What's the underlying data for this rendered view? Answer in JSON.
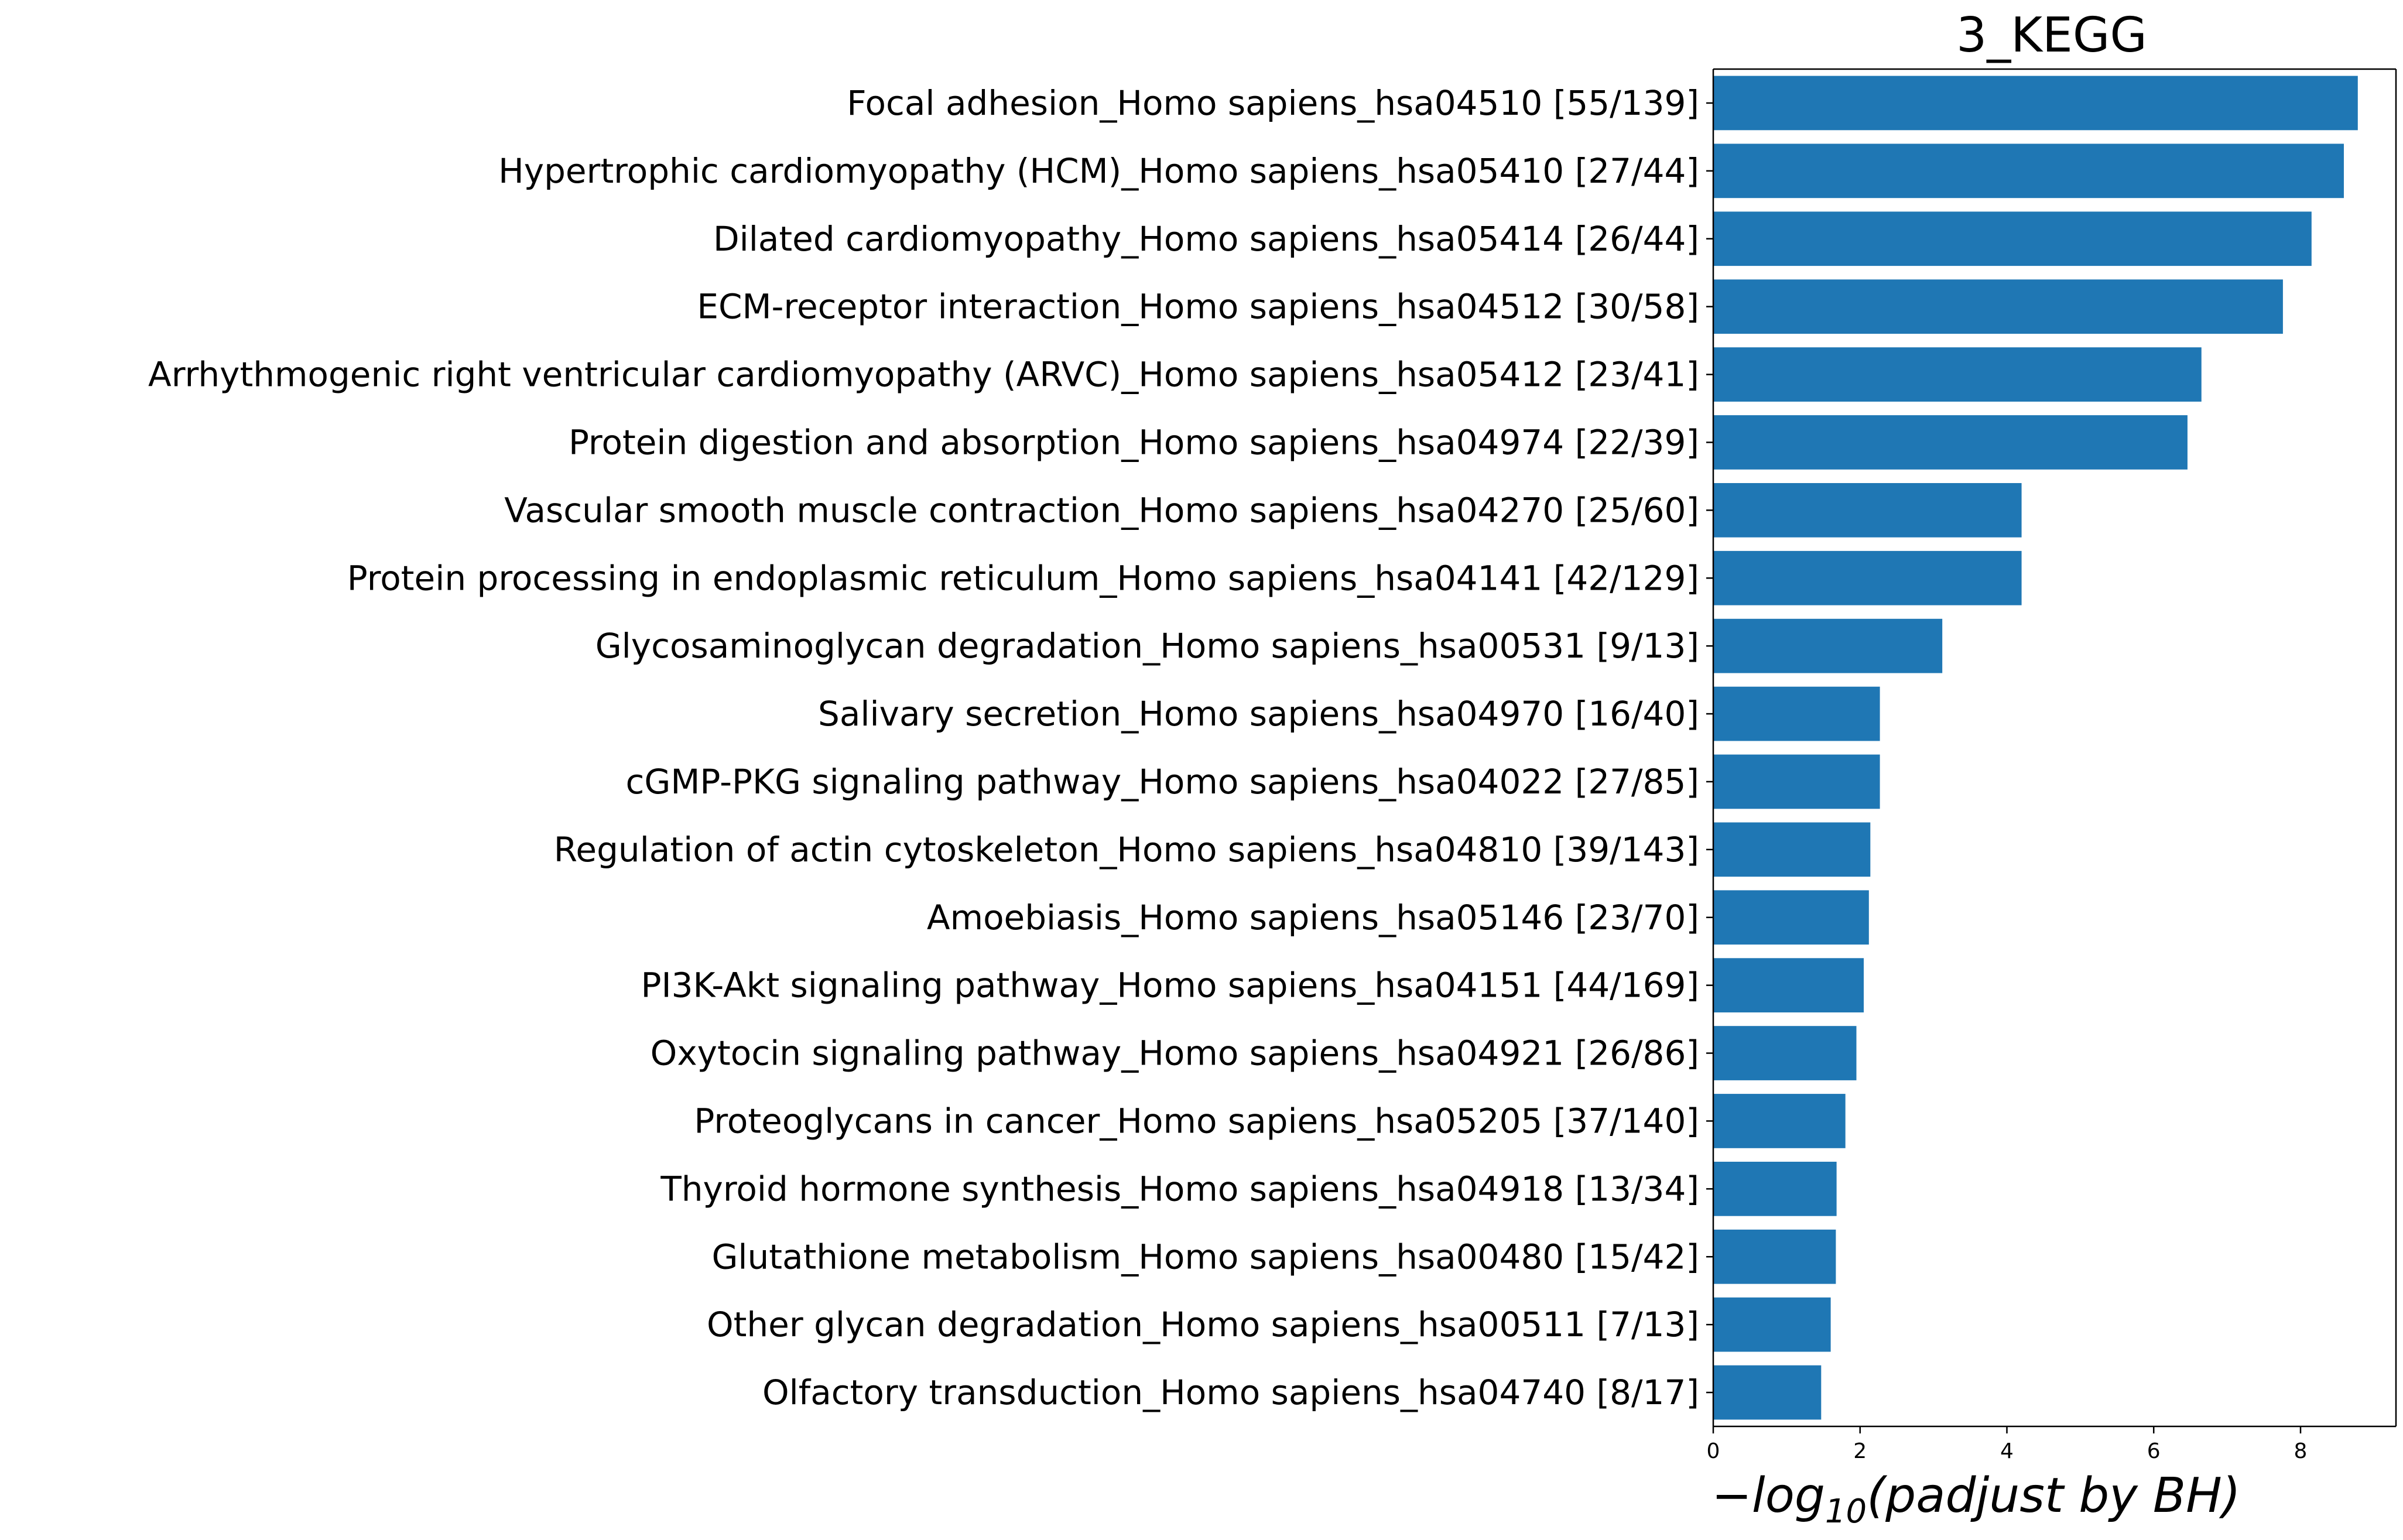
{
  "chart_data": {
    "type": "bar",
    "orientation": "horizontal",
    "title": "3_KEGG",
    "xlabel": {
      "prefix": "−log",
      "subscript": "10",
      "suffix": "(padjust by BH)"
    },
    "ylabel": "",
    "xlim": [
      0,
      9.3
    ],
    "xticks": [
      0,
      2,
      4,
      6,
      8
    ],
    "grid": false,
    "legend": "none",
    "bar_color": "#1f77b4",
    "categories": [
      "Focal adhesion_Homo sapiens_hsa04510 [55/139]",
      "Hypertrophic cardiomyopathy (HCM)_Homo sapiens_hsa05410 [27/44]",
      "Dilated cardiomyopathy_Homo sapiens_hsa05414 [26/44]",
      "ECM-receptor interaction_Homo sapiens_hsa04512 [30/58]",
      "Arrhythmogenic right ventricular cardiomyopathy (ARVC)_Homo sapiens_hsa05412 [23/41]",
      "Protein digestion and absorption_Homo sapiens_hsa04974 [22/39]",
      "Vascular smooth muscle contraction_Homo sapiens_hsa04270 [25/60]",
      "Protein processing in endoplasmic reticulum_Homo sapiens_hsa04141 [42/129]",
      "Glycosaminoglycan degradation_Homo sapiens_hsa00531 [9/13]",
      "Salivary secretion_Homo sapiens_hsa04970 [16/40]",
      "cGMP-PKG signaling pathway_Homo sapiens_hsa04022 [27/85]",
      "Regulation of actin cytoskeleton_Homo sapiens_hsa04810 [39/143]",
      "Amoebiasis_Homo sapiens_hsa05146 [23/70]",
      "PI3K-Akt signaling pathway_Homo sapiens_hsa04151 [44/169]",
      "Oxytocin signaling pathway_Homo sapiens_hsa04921 [26/86]",
      "Proteoglycans in cancer_Homo sapiens_hsa05205 [37/140]",
      "Thyroid hormone synthesis_Homo sapiens_hsa04918 [13/34]",
      "Glutathione metabolism_Homo sapiens_hsa00480 [15/42]",
      "Other glycan degradation_Homo sapiens_hsa00511 [7/13]",
      "Olfactory transduction_Homo sapiens_hsa04740 [8/17]"
    ],
    "values": [
      8.78,
      8.59,
      8.15,
      7.76,
      6.65,
      6.46,
      4.2,
      4.2,
      3.12,
      2.27,
      2.27,
      2.14,
      2.12,
      2.05,
      1.95,
      1.8,
      1.68,
      1.67,
      1.6,
      1.47
    ]
  }
}
